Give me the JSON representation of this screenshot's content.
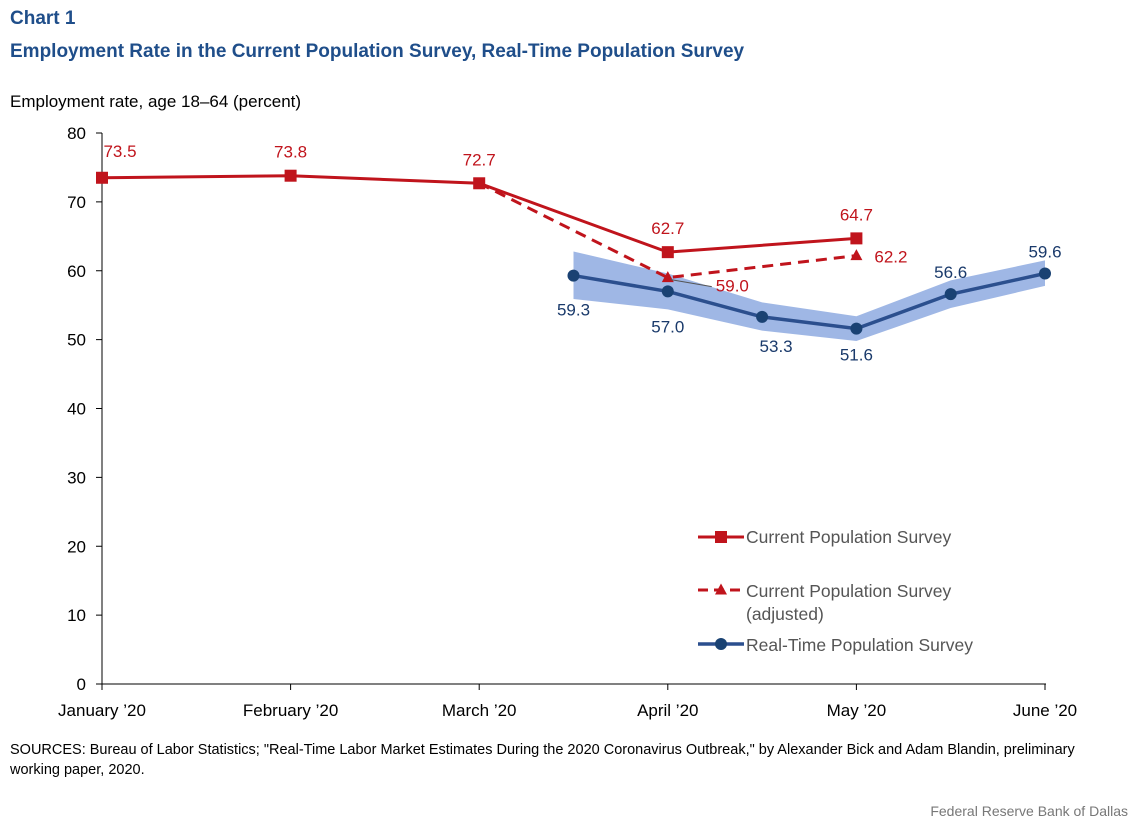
{
  "header": {
    "chart_number": "Chart 1",
    "title": "Employment  Rate in the Current Population Survey,  Real-Time Population Survey"
  },
  "colors": {
    "title": "#1f4e8a",
    "cps": "#c0141c",
    "rps": "#2b4f8e",
    "band": "#8eaae0"
  },
  "chart_data": {
    "type": "line",
    "ylabel": "Employment  rate, age 18–64 (percent)",
    "xlabel": "",
    "ylim": [
      0,
      80
    ],
    "yticks": [
      0,
      10,
      20,
      30,
      40,
      50,
      60,
      70,
      80
    ],
    "x_positions": [
      1,
      2,
      3,
      3.5,
      4,
      4.5,
      5,
      5.5,
      6
    ],
    "categories": [
      "January ’20",
      "February ’20",
      "March ’20",
      "April ’20",
      "May ’20",
      "June ’20"
    ],
    "category_x": [
      1,
      2,
      3,
      4,
      5,
      6
    ],
    "grid": false,
    "legend_placement": "bottom-right",
    "series": [
      {
        "name": "Current Population Survey",
        "style": "solid-square",
        "points": [
          {
            "x": 1,
            "y": 73.5,
            "label": "73.5"
          },
          {
            "x": 2,
            "y": 73.8,
            "label": "73.8"
          },
          {
            "x": 3,
            "y": 72.7,
            "label": "72.7"
          },
          {
            "x": 4,
            "y": 62.7,
            "label": "62.7"
          },
          {
            "x": 5,
            "y": 64.7,
            "label": "64.7"
          }
        ]
      },
      {
        "name": "Current Population Survey (adjusted)",
        "legend_lines": [
          "Current Population Survey",
          "(adjusted)"
        ],
        "style": "dashed-triangle",
        "points": [
          {
            "x": 3,
            "y": 72.7,
            "label": ""
          },
          {
            "x": 4,
            "y": 59.0,
            "label": "59.0"
          },
          {
            "x": 5,
            "y": 62.2,
            "label": "62.2"
          }
        ]
      },
      {
        "name": "Real-Time Population Survey",
        "style": "solid-circle",
        "points": [
          {
            "x": 3.5,
            "y": 59.3,
            "label": "59.3"
          },
          {
            "x": 4,
            "y": 57.0,
            "label": "57.0"
          },
          {
            "x": 4.5,
            "y": 53.3,
            "label": "53.3"
          },
          {
            "x": 5,
            "y": 51.6,
            "label": "51.6"
          },
          {
            "x": 5.5,
            "y": 56.6,
            "label": "56.6"
          },
          {
            "x": 6,
            "y": 59.6,
            "label": "59.6"
          }
        ],
        "band": {
          "x": [
            3.5,
            4,
            4.5,
            5,
            5.5,
            6
          ],
          "upper": [
            62.8,
            59.6,
            55.4,
            53.4,
            58.6,
            61.5
          ],
          "lower": [
            55.9,
            54.4,
            51.3,
            49.8,
            54.6,
            57.8
          ]
        }
      }
    ]
  },
  "footer": {
    "sources": "SOURCES: Bureau of Labor Statistics; \"Real-Time Labor Market Estimates During the 2020 Coronavirus Outbreak,\" by Alexander  Bick and Adam  Blandin, preliminary  working paper, 2020.",
    "credit": "Federal Reserve  Bank of Dallas"
  }
}
